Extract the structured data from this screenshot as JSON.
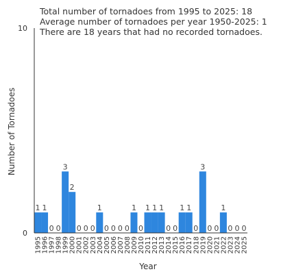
{
  "notes": {
    "line1": "Total number of tornadoes from 1995 to 2025: 18",
    "line2": "Average number of tornadoes per year 1950-2025: 1",
    "line3": "There are 18 years that had no recorded tornadoes."
  },
  "chart_data": {
    "type": "bar",
    "title": "",
    "xlabel": "Year",
    "ylabel": "Number of Tornadoes",
    "ylim": [
      0,
      10
    ],
    "yticks": [
      0,
      10
    ],
    "categories": [
      "1995",
      "1996",
      "1997",
      "1998",
      "1999",
      "2000",
      "2001",
      "2002",
      "2003",
      "2004",
      "2005",
      "2006",
      "2007",
      "2008",
      "2009",
      "2010",
      "2011",
      "2012",
      "2013",
      "2014",
      "2015",
      "2016",
      "2017",
      "2018",
      "2019",
      "2020",
      "2021",
      "2022",
      "2023",
      "2024",
      "2025"
    ],
    "values": [
      1,
      1,
      0,
      0,
      3,
      2,
      0,
      0,
      0,
      1,
      0,
      0,
      0,
      0,
      1,
      0,
      1,
      1,
      1,
      0,
      0,
      1,
      1,
      0,
      3,
      0,
      0,
      1,
      0,
      0,
      0
    ],
    "bar_color": "#2e86de",
    "grid": false,
    "legend": "none"
  }
}
